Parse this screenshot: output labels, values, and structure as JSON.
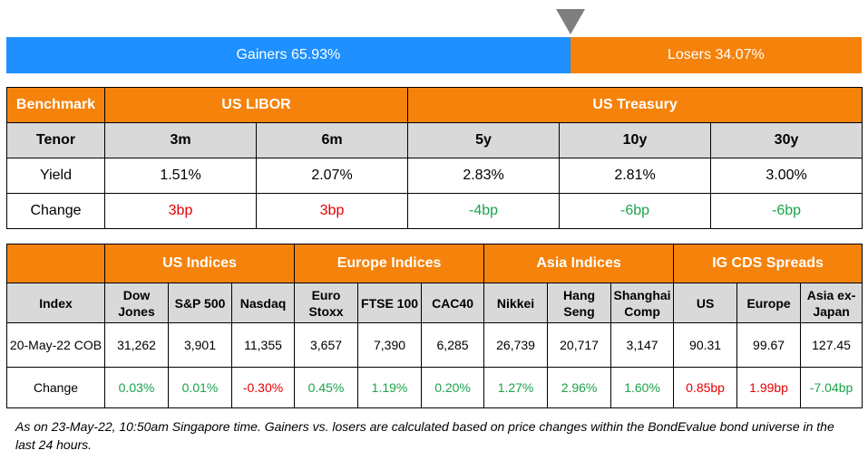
{
  "breadth": {
    "gainers_label": "Gainers 65.93%",
    "losers_label": "Losers 34.07%",
    "gainers_pct": 65.93,
    "losers_pct": 34.07,
    "gainers_color": "#1e90ff",
    "losers_color": "#f5820a",
    "pointer_icon": "triangle-down-icon"
  },
  "rates": {
    "benchmark_label": "Benchmark",
    "groups": [
      "US LIBOR",
      "US Treasury"
    ],
    "tenor_label": "Tenor",
    "tenors": [
      "3m",
      "6m",
      "5y",
      "10y",
      "30y"
    ],
    "yield_label": "Yield",
    "yields": [
      "1.51%",
      "2.07%",
      "2.83%",
      "2.81%",
      "3.00%"
    ],
    "change_label": "Change",
    "changes": [
      "3bp",
      "3bp",
      "-4bp",
      "-6bp",
      "-6bp"
    ]
  },
  "indices": {
    "groups": [
      "US Indices",
      "Europe Indices",
      "Asia Indices",
      "IG CDS Spreads"
    ],
    "index_label": "Index",
    "columns": [
      "Dow Jones",
      "S&P 500",
      "Nasdaq",
      "Euro Stoxx",
      "FTSE 100",
      "CAC40",
      "Nikkei",
      "Hang Seng",
      "Shanghai Comp",
      "US",
      "Europe",
      "Asia ex-Japan"
    ],
    "date_label": "20-May-22 COB",
    "values": [
      "31,262",
      "3,901",
      "11,355",
      "3,657",
      "7,390",
      "6,285",
      "26,739",
      "20,717",
      "3,147",
      "90.31",
      "99.67",
      "127.45"
    ],
    "change_label": "Change",
    "changes": [
      "0.03%",
      "0.01%",
      "-0.30%",
      "0.45%",
      "1.19%",
      "0.20%",
      "1.27%",
      "2.96%",
      "1.60%",
      "0.85bp",
      "1.99bp",
      "-7.04bp"
    ]
  },
  "colors": {
    "header_orange": "#f5820a",
    "subheader_grey": "#d9d9d9",
    "positive_green": "#1aa34a",
    "negative_red": "#e60000"
  },
  "footnote": "As on 23-May-22, 10:50am Singapore time. Gainers vs. losers are calculated based on price changes within the BondEvalue bond universe in the last 24 hours."
}
